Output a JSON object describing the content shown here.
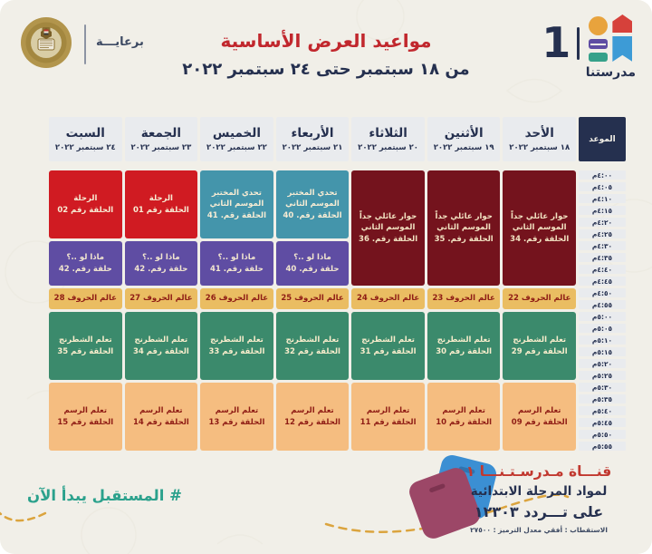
{
  "header": {
    "sponsor_label": "برعايـــة",
    "title": "مواعيد العرض الأساسية",
    "subtitle": "من ١٨ سبتمبر حتى ٢٤ سبتمبر ٢٠٢٢",
    "logo": {
      "number": "1",
      "name": "مدرستنا"
    }
  },
  "colors": {
    "navy": "#25304f",
    "title_red": "#c1272d",
    "header_gray": "#e9ebee",
    "hashtag_teal": "#2ba18c",
    "dashed_line": "#dba43e",
    "blocks": {
      "maroon": {
        "bg": "#74131d",
        "fg": "#f2e3c2"
      },
      "red": {
        "bg": "#d01b22",
        "fg": "#f7ecd4"
      },
      "teal": {
        "bg": "#4495ab",
        "fg": "#f7ecd4"
      },
      "purple": {
        "bg": "#5f4da3",
        "fg": "#f2e6cf"
      },
      "gold": {
        "bg": "#eabd62",
        "fg": "#8f1d15"
      },
      "green": {
        "bg": "#3b8a6c",
        "fg": "#f7eccb"
      },
      "orange": {
        "bg": "#f5bd80",
        "fg": "#8f1d15"
      }
    }
  },
  "schedule": {
    "time_header": "الموعد",
    "times": [
      "٤:٠٠م",
      "٤:٠٥م",
      "٤:١٠م",
      "٤:١٥م",
      "٤:٢٠م",
      "٤:٢٥م",
      "٤:٣٠م",
      "٤:٣٥م",
      "٤:٤٠م",
      "٤:٤٥م",
      "٤:٥٠م",
      "٤:٥٥م",
      "٥:٠٠م",
      "٥:٠٥م",
      "٥:١٠م",
      "٥:١٥م",
      "٥:٢٠م",
      "٥:٢٥م",
      "٥:٣٠م",
      "٥:٣٥م",
      "٥:٤٠م",
      "٥:٤٥م",
      "٥:٥٠م",
      "٥:٥٥م"
    ],
    "days": [
      {
        "name": "الأحد",
        "date": "١٨ سبتمبر ٢٠٢٢",
        "blocks": [
          {
            "start": 0,
            "span": 10,
            "color": "maroon",
            "lines": [
              "حوار عائلي جداً الموسم الثاني",
              "الحلقة رقم. 34"
            ]
          },
          {
            "start": 10,
            "span": 2,
            "color": "gold",
            "lines": [
              "عالم الحروف 22"
            ]
          },
          {
            "start": 12,
            "span": 6,
            "color": "green",
            "lines": [
              "تعلم الشطرنج",
              "الحلقة رقم 29"
            ]
          },
          {
            "start": 18,
            "span": 6,
            "color": "orange",
            "lines": [
              "تعلم الرسم",
              "الحلقة رقم 09"
            ]
          }
        ]
      },
      {
        "name": "الأثنين",
        "date": "١٩ سبتمبر ٢٠٢٢",
        "blocks": [
          {
            "start": 0,
            "span": 10,
            "color": "maroon",
            "lines": [
              "حوار عائلي جداً الموسم الثاني",
              "الحلقة رقم. 35"
            ]
          },
          {
            "start": 10,
            "span": 2,
            "color": "gold",
            "lines": [
              "عالم الحروف 23"
            ]
          },
          {
            "start": 12,
            "span": 6,
            "color": "green",
            "lines": [
              "تعلم الشطرنج",
              "الحلقة رقم 30"
            ]
          },
          {
            "start": 18,
            "span": 6,
            "color": "orange",
            "lines": [
              "تعلم الرسم",
              "الحلقة رقم 10"
            ]
          }
        ]
      },
      {
        "name": "الثلاثاء",
        "date": "٢٠ سبتمبر ٢٠٢٢",
        "blocks": [
          {
            "start": 0,
            "span": 10,
            "color": "maroon",
            "lines": [
              "حوار عائلي جداً الموسم الثاني",
              "الحلقة رقم. 36"
            ]
          },
          {
            "start": 10,
            "span": 2,
            "color": "gold",
            "lines": [
              "عالم الحروف 24"
            ]
          },
          {
            "start": 12,
            "span": 6,
            "color": "green",
            "lines": [
              "تعلم الشطرنج",
              "الحلقة رقم 31"
            ]
          },
          {
            "start": 18,
            "span": 6,
            "color": "orange",
            "lines": [
              "تعلم الرسم",
              "الحلقة رقم 11"
            ]
          }
        ]
      },
      {
        "name": "الأربعاء",
        "date": "٢١ سبتمبر ٢٠٢٢",
        "blocks": [
          {
            "start": 0,
            "span": 6,
            "color": "teal",
            "lines": [
              "تحدي المختبر الموسم الثاني",
              "الحلقة رقم. 40"
            ]
          },
          {
            "start": 6,
            "span": 4,
            "color": "purple",
            "lines": [
              "ماذا لو ..؟",
              "حلقة رقم. 40"
            ]
          },
          {
            "start": 10,
            "span": 2,
            "color": "gold",
            "lines": [
              "عالم الحروف 25"
            ]
          },
          {
            "start": 12,
            "span": 6,
            "color": "green",
            "lines": [
              "تعلم الشطرنج",
              "الحلقة رقم 32"
            ]
          },
          {
            "start": 18,
            "span": 6,
            "color": "orange",
            "lines": [
              "تعلم الرسم",
              "الحلقة رقم 12"
            ]
          }
        ]
      },
      {
        "name": "الخميس",
        "date": "٢٢ سبتمبر ٢٠٢٢",
        "blocks": [
          {
            "start": 0,
            "span": 6,
            "color": "teal",
            "lines": [
              "تحدي المختبر الموسم الثاني",
              "الحلقة رقم. 41"
            ]
          },
          {
            "start": 6,
            "span": 4,
            "color": "purple",
            "lines": [
              "ماذا لو ..؟",
              "حلقة رقم. 41"
            ]
          },
          {
            "start": 10,
            "span": 2,
            "color": "gold",
            "lines": [
              "عالم الحروف 26"
            ]
          },
          {
            "start": 12,
            "span": 6,
            "color": "green",
            "lines": [
              "تعلم الشطرنج",
              "الحلقة رقم 33"
            ]
          },
          {
            "start": 18,
            "span": 6,
            "color": "orange",
            "lines": [
              "تعلم الرسم",
              "الحلقة رقم 13"
            ]
          }
        ]
      },
      {
        "name": "الجمعة",
        "date": "٢٣ سبتمبر ٢٠٢٢",
        "blocks": [
          {
            "start": 0,
            "span": 6,
            "color": "red",
            "lines": [
              "الرحلة",
              "الحلقة رقم 01"
            ]
          },
          {
            "start": 6,
            "span": 4,
            "color": "purple",
            "lines": [
              "ماذا لو ..؟",
              "حلقة رقم. 42"
            ]
          },
          {
            "start": 10,
            "span": 2,
            "color": "gold",
            "lines": [
              "عالم الحروف 27"
            ]
          },
          {
            "start": 12,
            "span": 6,
            "color": "green",
            "lines": [
              "تعلم الشطرنج",
              "الحلقة رقم 34"
            ]
          },
          {
            "start": 18,
            "span": 6,
            "color": "orange",
            "lines": [
              "تعلم الرسم",
              "الحلقة رقم 14"
            ]
          }
        ]
      },
      {
        "name": "السبت",
        "date": "٢٤ سبتمبر ٢٠٢٢",
        "blocks": [
          {
            "start": 0,
            "span": 6,
            "color": "red",
            "lines": [
              "الرحلة",
              "الحلقة رقم 02"
            ]
          },
          {
            "start": 6,
            "span": 4,
            "color": "purple",
            "lines": [
              "ماذا لو ..؟",
              "حلقة رقم. 42"
            ]
          },
          {
            "start": 10,
            "span": 2,
            "color": "gold",
            "lines": [
              "عالم الحروف 28"
            ]
          },
          {
            "start": 12,
            "span": 6,
            "color": "green",
            "lines": [
              "تعلم الشطرنج",
              "الحلقة رقم 35"
            ]
          },
          {
            "start": 18,
            "span": 6,
            "color": "orange",
            "lines": [
              "تعلم الرسم",
              "الحلقة رقم 15"
            ]
          }
        ]
      }
    ]
  },
  "footer": {
    "hashtag": "# المستقبل يبدأ الآن",
    "channel_line1": "قنـــاة مـدرسـتـنـــا ١",
    "channel_line2": "لمواد المرحلة الابتدائية",
    "channel_line3": "على تـــردد ١٢٣٠٣",
    "channel_line4": "الاستقطاب : أفقي    معدل الترميز : ٢٧٥٠٠"
  }
}
